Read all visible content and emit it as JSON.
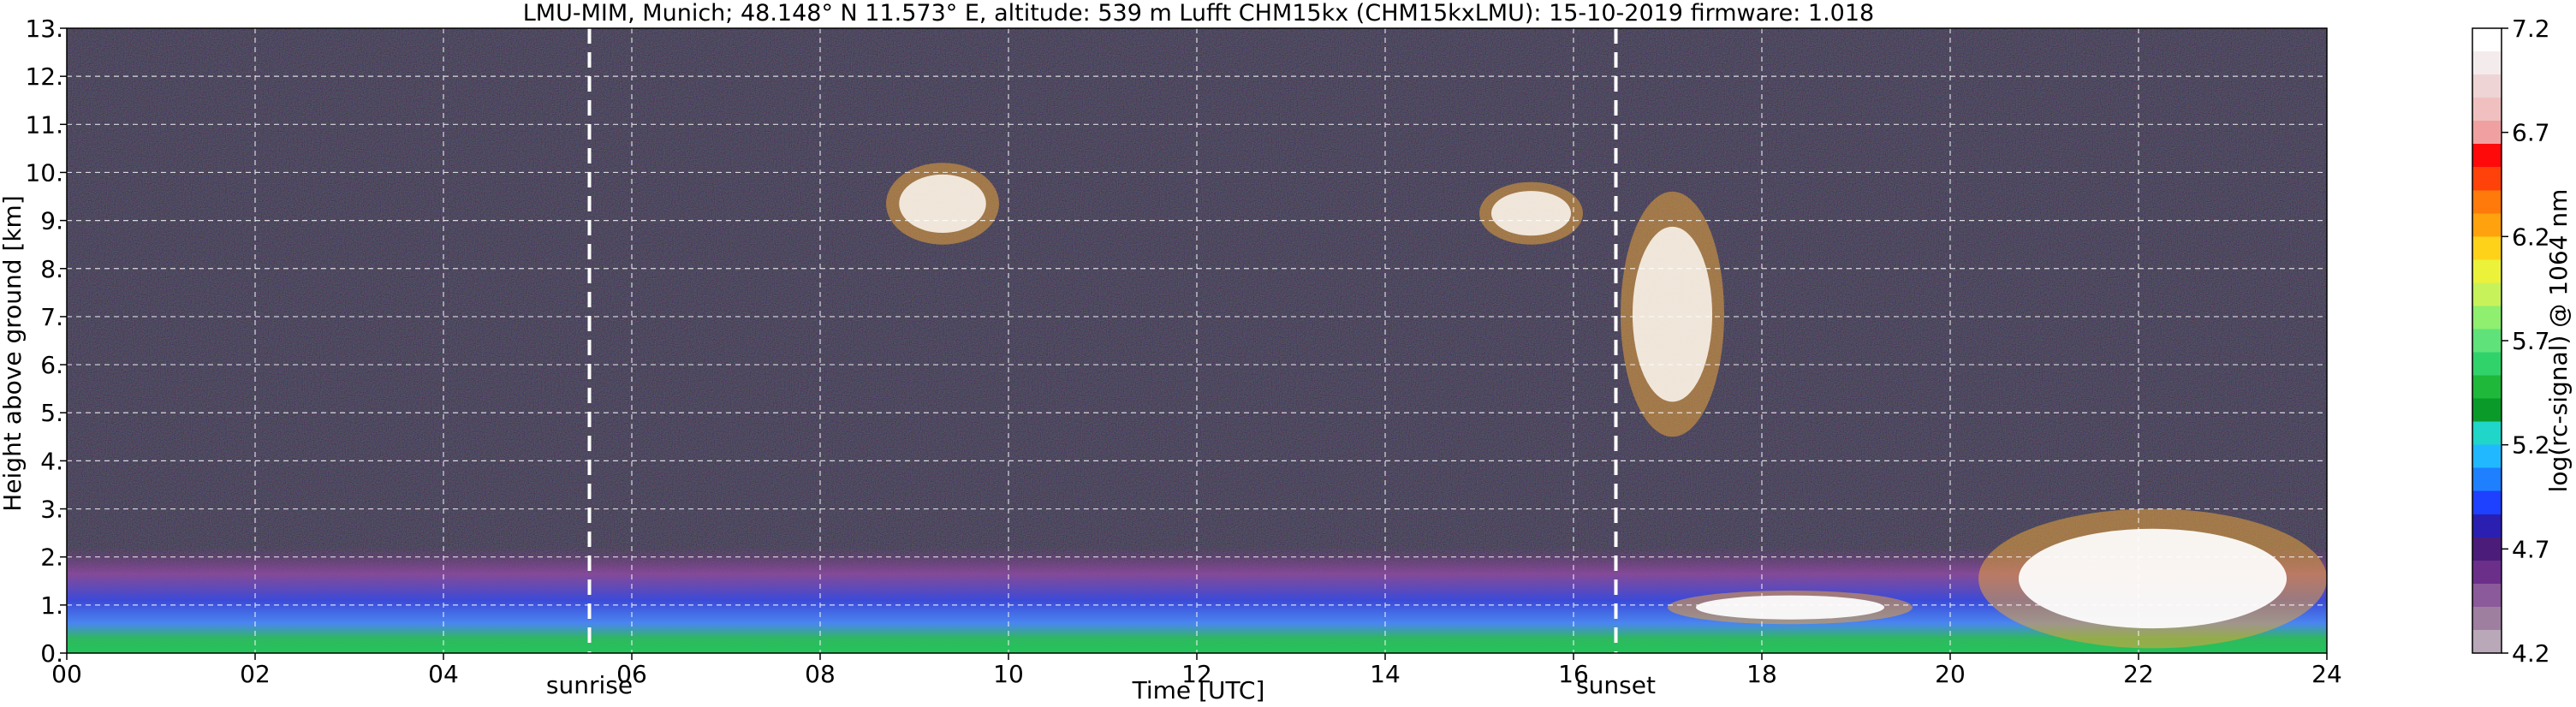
{
  "chart_data": {
    "type": "heatmap",
    "title": "LMU-MIM, Munich; 48.148° N 11.573° E, altitude: 539 m    Lufft CHM15kx (CHM15kxLMU): 15-10-2019    firmware: 1.018",
    "xlabel": "Time [UTC]",
    "ylabel": "Height above ground [km]",
    "xlim": [
      0,
      24
    ],
    "ylim": [
      0,
      13
    ],
    "x_ticks": [
      {
        "value": 0,
        "label": "00"
      },
      {
        "value": 2,
        "label": "02"
      },
      {
        "value": 4,
        "label": "04"
      },
      {
        "value": 6,
        "label": "06"
      },
      {
        "value": 8,
        "label": "08"
      },
      {
        "value": 10,
        "label": "10"
      },
      {
        "value": 12,
        "label": "12"
      },
      {
        "value": 14,
        "label": "14"
      },
      {
        "value": 16,
        "label": "16"
      },
      {
        "value": 18,
        "label": "18"
      },
      {
        "value": 20,
        "label": "20"
      },
      {
        "value": 22,
        "label": "22"
      },
      {
        "value": 24,
        "label": "24"
      }
    ],
    "y_ticks": [
      {
        "value": 0,
        "label": "0."
      },
      {
        "value": 1,
        "label": "1."
      },
      {
        "value": 2,
        "label": "2."
      },
      {
        "value": 3,
        "label": "3."
      },
      {
        "value": 4,
        "label": "4."
      },
      {
        "value": 5,
        "label": "5."
      },
      {
        "value": 6,
        "label": "6."
      },
      {
        "value": 7,
        "label": "7."
      },
      {
        "value": 8,
        "label": "8."
      },
      {
        "value": 9,
        "label": "9."
      },
      {
        "value": 10,
        "label": "10."
      },
      {
        "value": 11,
        "label": "11."
      },
      {
        "value": 12,
        "label": "12."
      },
      {
        "value": 13,
        "label": "13."
      }
    ],
    "grid": true,
    "grid_style": "dashed white",
    "annotations": [
      {
        "label": "sunrise",
        "time": 5.55
      },
      {
        "label": "sunset",
        "time": 16.45
      }
    ],
    "colorbar": {
      "label": "log(rc-signal) @ 1064 nm",
      "min": 4.2,
      "max": 7.2,
      "ticks": [
        {
          "value": 4.2,
          "label": "4.2"
        },
        {
          "value": 4.7,
          "label": "4.7"
        },
        {
          "value": 5.2,
          "label": "5.2"
        },
        {
          "value": 5.7,
          "label": "5.7"
        },
        {
          "value": 6.2,
          "label": "6.2"
        },
        {
          "value": 6.7,
          "label": "6.7"
        },
        {
          "value": 7.2,
          "label": "7.2"
        }
      ],
      "colors": [
        "#b8a8b8",
        "#9e7fa0",
        "#8b5a9a",
        "#6b2f8a",
        "#4b1c7a",
        "#2a1fb0",
        "#1e40ff",
        "#1e7fff",
        "#22b8ff",
        "#1fd6c8",
        "#0a9a2a",
        "#1fb83a",
        "#30d36a",
        "#5fe27a",
        "#8fef6e",
        "#c8f25a",
        "#ecf23a",
        "#ffd21a",
        "#ffa20e",
        "#ff7a0a",
        "#ff420a",
        "#ff0a0a",
        "#f0a0a0",
        "#f0c0c0",
        "#eed4d4",
        "#f4ecec",
        "#ffffff"
      ]
    },
    "features": [
      {
        "name": "boundary-layer",
        "t_start": 0,
        "t_end": 24,
        "height_km": [
          0,
          2.2
        ]
      },
      {
        "name": "cirrus-cloud",
        "t_start": 8.7,
        "t_end": 9.9,
        "height_km": [
          8.5,
          10.2
        ]
      },
      {
        "name": "cirrus-cloud",
        "t_start": 15.0,
        "t_end": 16.1,
        "height_km": [
          8.5,
          9.8
        ]
      },
      {
        "name": "cirrus-cloud",
        "t_start": 16.5,
        "t_end": 17.6,
        "height_km": [
          4.5,
          9.6
        ]
      },
      {
        "name": "low-cloud",
        "t_start": 17.0,
        "t_end": 19.6,
        "height_km": [
          0.6,
          1.3
        ]
      },
      {
        "name": "low-cloud",
        "t_start": 20.3,
        "t_end": 24,
        "height_km": [
          0.1,
          3.0
        ]
      }
    ]
  }
}
